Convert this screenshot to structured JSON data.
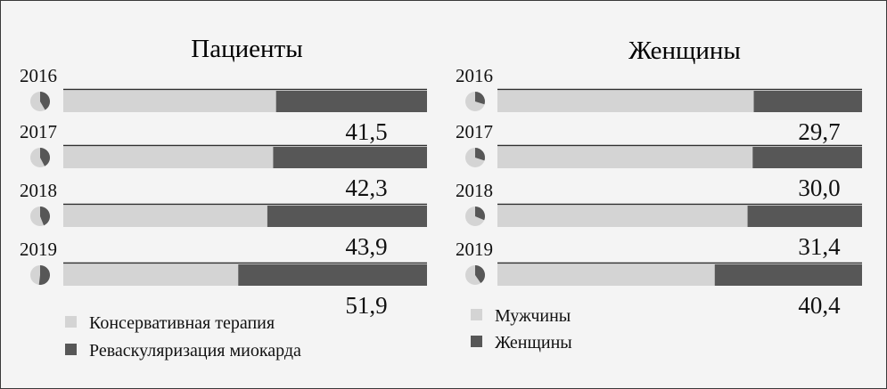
{
  "colors": {
    "light": "#d4d4d4",
    "dark": "#575757",
    "outline": "#2e2e2e",
    "text": "#111111"
  },
  "chart_data": [
    {
      "type": "bar",
      "title": "Пациенты",
      "categories": [
        "2016",
        "2017",
        "2018",
        "2019"
      ],
      "series": [
        {
          "name": "Консервативная терапия",
          "values": [
            58.5,
            57.7,
            56.1,
            48.1
          ]
        },
        {
          "name": "Реваскуляризация миокарда",
          "values": [
            41.5,
            42.3,
            43.9,
            51.9
          ]
        }
      ],
      "value_labels": [
        "41,5",
        "42,3",
        "43,9",
        "51,9"
      ],
      "xlim": [
        0,
        100
      ],
      "legend": "bottom-left"
    },
    {
      "type": "bar",
      "title": "Женщины",
      "categories": [
        "2016",
        "2017",
        "2018",
        "2019"
      ],
      "series": [
        {
          "name": "Мужчины",
          "values": [
            70.3,
            70.0,
            68.6,
            59.6
          ]
        },
        {
          "name": "Женщины",
          "values": [
            29.7,
            30.0,
            31.4,
            40.4
          ]
        }
      ],
      "value_labels": [
        "29,7",
        "30,0",
        "31,4",
        "40,4"
      ],
      "xlim": [
        0,
        100
      ],
      "legend": "bottom-left"
    }
  ]
}
